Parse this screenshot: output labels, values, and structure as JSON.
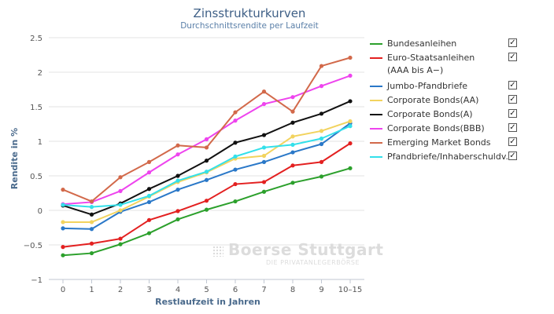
{
  "chart_data": {
    "type": "line",
    "title": "Zinsstrukturkurven",
    "subtitle": "Durchschnittsrendite per Laufzeit",
    "xlabel": "Restlaufzeit in Jahren",
    "ylabel": "Rendite in %",
    "categories": [
      "0",
      "1",
      "2",
      "3",
      "4",
      "5",
      "6",
      "7",
      "8",
      "9",
      "10–15"
    ],
    "ylim": [
      -1,
      2.5
    ],
    "yticks": [
      "−1",
      "−0.5",
      "0",
      "0.5",
      "1",
      "1.5",
      "2",
      "2.5"
    ],
    "grid": true,
    "legend_position": "right",
    "series": [
      {
        "name": "Bundesanleihen",
        "color": "#2ca02c",
        "values": [
          -0.65,
          -0.62,
          -0.49,
          -0.33,
          -0.13,
          0.01,
          0.13,
          0.27,
          0.4,
          0.49,
          0.61
        ]
      },
      {
        "name": "Euro-Staatsanleihen",
        "name2": "(AAA bis A−)",
        "color": "#e32020",
        "values": [
          -0.53,
          -0.48,
          -0.41,
          -0.14,
          -0.01,
          0.14,
          0.38,
          0.41,
          0.65,
          0.7,
          0.97
        ]
      },
      {
        "name": "Jumbo-Pfandbriefe",
        "color": "#2a78c8",
        "values": [
          -0.26,
          -0.27,
          -0.02,
          0.12,
          0.3,
          0.44,
          0.59,
          0.7,
          0.84,
          0.96,
          1.26
        ]
      },
      {
        "name": "Corporate Bonds(AA)",
        "color": "#f2d35e",
        "values": [
          -0.17,
          -0.17,
          0.0,
          0.2,
          0.41,
          0.55,
          0.75,
          0.79,
          1.07,
          1.15,
          1.29
        ]
      },
      {
        "name": "Corporate Bonds(A)",
        "color": "#111111",
        "values": [
          0.07,
          -0.06,
          0.1,
          0.31,
          0.5,
          0.72,
          0.98,
          1.09,
          1.27,
          1.4,
          1.58
        ]
      },
      {
        "name": "Corporate Bonds(BBB)",
        "color": "#ee44ee",
        "values": [
          0.09,
          0.12,
          0.28,
          0.55,
          0.81,
          1.03,
          1.3,
          1.54,
          1.64,
          1.8,
          1.95
        ]
      },
      {
        "name": "Emerging Market Bonds",
        "color": "#d2694a",
        "values": [
          0.3,
          0.13,
          0.48,
          0.7,
          0.94,
          0.91,
          1.42,
          1.72,
          1.43,
          2.09,
          2.21
        ]
      },
      {
        "name": "Pfandbriefe/Inhaberschuldv.",
        "color": "#33e0ea",
        "values": [
          0.08,
          0.05,
          0.08,
          0.21,
          0.43,
          0.56,
          0.78,
          0.91,
          0.95,
          1.04,
          1.22
        ]
      }
    ]
  },
  "legend": {
    "check_glyph": "✓"
  },
  "watermark": {
    "main": "Boerse Stuttgart",
    "sub": "DIE PRIVATANLEGERBÖRSE"
  }
}
